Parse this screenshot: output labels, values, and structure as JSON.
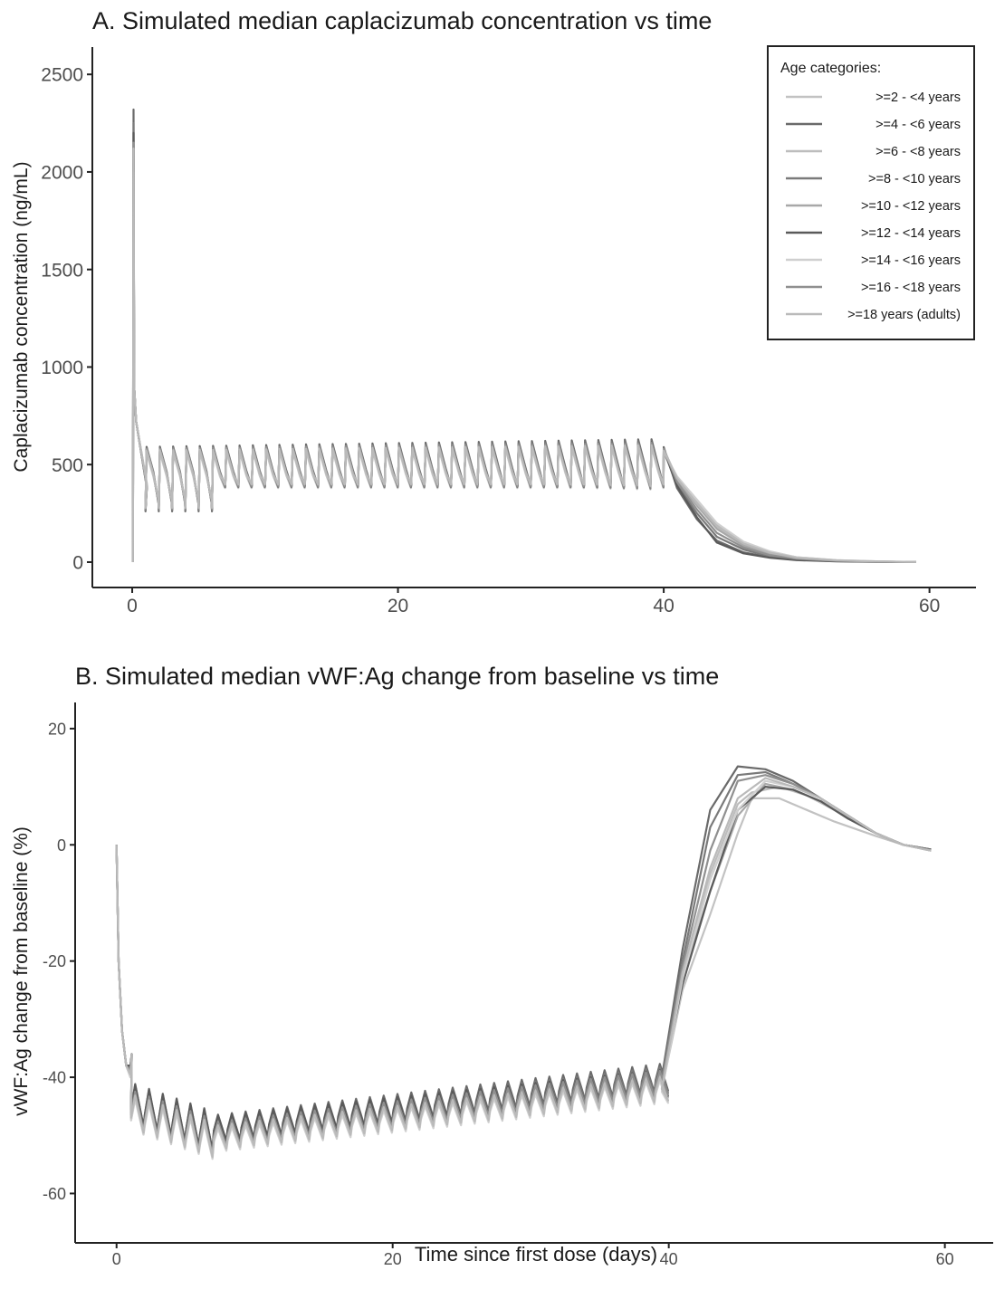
{
  "chart_data": [
    {
      "type": "line",
      "title": "A. Simulated median caplacizumab concentration vs  time",
      "xlabel": "",
      "ylabel": "Caplacizumab concentration (ng/mL)",
      "xlim": [
        -3,
        63.5
      ],
      "ylim": [
        -130,
        2640
      ],
      "x_ticks": [
        0,
        20,
        40,
        60
      ],
      "x_tick_labels": [
        "0",
        "20",
        "40",
        "60"
      ],
      "y_ticks": [
        0,
        500,
        1000,
        1500,
        2000,
        2500
      ],
      "y_tick_labels": [
        "0",
        "500",
        "1000",
        "1500",
        "2000",
        "2500"
      ],
      "grid": false,
      "legend": {
        "title": "Age categories:",
        "placement": "top-right",
        "entries": [
          ">=2 - <4 years",
          ">=4 - <6 years",
          ">=6 - <8 years",
          ">=8 - <10 years",
          ">=10 - <12 years",
          ">=12 - <14 years",
          ">=14 - <16 years",
          ">=16 - <18 years",
          ">=18 years (adults)"
        ]
      },
      "series": [
        {
          "color": "#c2c2c2",
          "peak0": 1950,
          "trough_load": 280,
          "sawtooth_min": 370,
          "sawtooth_max": 560,
          "end_max": 590,
          "washout": [
            [
              40,
              560
            ],
            [
              41,
              420
            ],
            [
              42.5,
              300
            ],
            [
              44,
              180
            ],
            [
              46,
              90
            ],
            [
              48,
              45
            ],
            [
              50,
              20
            ],
            [
              53,
              8
            ],
            [
              56,
              3
            ],
            [
              59,
              1
            ]
          ]
        },
        {
          "color": "#6a6a6a",
          "peak0": 2320,
          "trough_load": 260,
          "sawtooth_min": 380,
          "sawtooth_max": 590,
          "end_max": 630,
          "washout": [
            [
              40,
              590
            ],
            [
              41,
              380
            ],
            [
              42.5,
              220
            ],
            [
              44,
              110
            ],
            [
              46,
              50
            ],
            [
              48,
              25
            ],
            [
              50,
              12
            ],
            [
              53,
              5
            ],
            [
              56,
              2
            ],
            [
              59,
              1
            ]
          ]
        },
        {
          "color": "#bdbdbd",
          "peak0": 2050,
          "trough_load": 275,
          "sawtooth_min": 390,
          "sawtooth_max": 580,
          "end_max": 600,
          "washout": [
            [
              40,
              580
            ],
            [
              41,
              430
            ],
            [
              42.5,
              310
            ],
            [
              44,
              190
            ],
            [
              46,
              100
            ],
            [
              48,
              50
            ],
            [
              50,
              25
            ],
            [
              53,
              10
            ],
            [
              56,
              4
            ],
            [
              59,
              1
            ]
          ]
        },
        {
          "color": "#7a7a7a",
          "peak0": 2250,
          "trough_load": 265,
          "sawtooth_min": 375,
          "sawtooth_max": 580,
          "end_max": 620,
          "washout": [
            [
              40,
              580
            ],
            [
              41,
              400
            ],
            [
              42.5,
              250
            ],
            [
              44,
              130
            ],
            [
              46,
              65
            ],
            [
              48,
              30
            ],
            [
              50,
              15
            ],
            [
              53,
              6
            ],
            [
              56,
              2
            ],
            [
              59,
              1
            ]
          ]
        },
        {
          "color": "#a8a8a8",
          "peak0": 2100,
          "trough_load": 270,
          "sawtooth_min": 385,
          "sawtooth_max": 570,
          "end_max": 605,
          "washout": [
            [
              40,
              570
            ],
            [
              41,
              420
            ],
            [
              42.5,
              290
            ],
            [
              44,
              170
            ],
            [
              46,
              85
            ],
            [
              48,
              40
            ],
            [
              50,
              20
            ],
            [
              53,
              8
            ],
            [
              56,
              3
            ],
            [
              59,
              1
            ]
          ]
        },
        {
          "color": "#5a5a5a",
          "peak0": 2200,
          "trough_load": 268,
          "sawtooth_min": 380,
          "sawtooth_max": 575,
          "end_max": 615,
          "washout": [
            [
              40,
              575
            ],
            [
              41,
              390
            ],
            [
              42.5,
              230
            ],
            [
              44,
              100
            ],
            [
              46,
              45
            ],
            [
              48,
              22
            ],
            [
              50,
              10
            ],
            [
              53,
              4
            ],
            [
              56,
              2
            ],
            [
              59,
              1
            ]
          ]
        },
        {
          "color": "#cfcfcf",
          "peak0": 2000,
          "trough_load": 285,
          "sawtooth_min": 395,
          "sawtooth_max": 565,
          "end_max": 595,
          "washout": [
            [
              40,
              565
            ],
            [
              41,
              440
            ],
            [
              42.5,
              320
            ],
            [
              44,
              200
            ],
            [
              46,
              105
            ],
            [
              48,
              55
            ],
            [
              50,
              25
            ],
            [
              53,
              10
            ],
            [
              56,
              4
            ],
            [
              59,
              1
            ]
          ]
        },
        {
          "color": "#909090",
          "peak0": 2150,
          "trough_load": 270,
          "sawtooth_min": 380,
          "sawtooth_max": 580,
          "end_max": 612,
          "washout": [
            [
              40,
              580
            ],
            [
              41,
              410
            ],
            [
              42.5,
              270
            ],
            [
              44,
              150
            ],
            [
              46,
              75
            ],
            [
              48,
              35
            ],
            [
              50,
              17
            ],
            [
              53,
              7
            ],
            [
              56,
              3
            ],
            [
              59,
              1
            ]
          ]
        },
        {
          "color": "#bababa",
          "peak0": 2120,
          "trough_load": 278,
          "sawtooth_min": 388,
          "sawtooth_max": 572,
          "end_max": 600,
          "washout": [
            [
              40,
              572
            ],
            [
              41,
              430
            ],
            [
              42.5,
              300
            ],
            [
              44,
              185
            ],
            [
              46,
              95
            ],
            [
              48,
              48
            ],
            [
              50,
              22
            ],
            [
              53,
              9
            ],
            [
              56,
              3
            ],
            [
              59,
              1
            ]
          ]
        }
      ]
    },
    {
      "type": "line",
      "title": "B. Simulated median vWF:Ag change from baseline vs  time",
      "xlabel": "Time since first dose (days)",
      "ylabel": "vWF:Ag change from baseline (%)",
      "xlim": [
        -3,
        63.5
      ],
      "ylim": [
        -68.5,
        24.5
      ],
      "x_ticks": [
        0,
        20,
        40,
        60
      ],
      "x_tick_labels": [
        "0",
        "20",
        "40",
        "60"
      ],
      "y_ticks": [
        -60,
        -40,
        -20,
        0,
        20
      ],
      "y_tick_labels": [
        "-60",
        "-40",
        "-20",
        "0",
        "20"
      ],
      "grid": false,
      "series": [
        {
          "color": "#c2c2c2",
          "load_min": -46,
          "early_min": -50,
          "plateau_end": -42,
          "amp": 2.0,
          "recovery": [
            [
              39.5,
              -42
            ],
            [
              41,
              -25
            ],
            [
              43,
              -12
            ],
            [
              45,
              2
            ],
            [
              46,
              8
            ],
            [
              48,
              8
            ],
            [
              50,
              6
            ],
            [
              52,
              4
            ],
            [
              55,
              1.5
            ],
            [
              57,
              0
            ],
            [
              59,
              -1
            ]
          ]
        },
        {
          "color": "#6a6a6a",
          "load_min": -44,
          "early_min": -49,
          "plateau_end": -40,
          "amp": 2.3,
          "recovery": [
            [
              39.5,
              -40
            ],
            [
              41,
              -18
            ],
            [
              43,
              6
            ],
            [
              45,
              13.5
            ],
            [
              47,
              13
            ],
            [
              49,
              11
            ],
            [
              51,
              8
            ],
            [
              53,
              5
            ],
            [
              55,
              2
            ],
            [
              57,
              0
            ],
            [
              59,
              -0.8
            ]
          ]
        },
        {
          "color": "#bdbdbd",
          "load_min": -45,
          "early_min": -50,
          "plateau_end": -41.5,
          "amp": 2.0,
          "recovery": [
            [
              39.5,
              -41.5
            ],
            [
              41,
              -22
            ],
            [
              43,
              -5
            ],
            [
              45,
              7
            ],
            [
              46,
              9
            ],
            [
              48,
              10
            ],
            [
              50,
              8.5
            ],
            [
              52,
              6
            ],
            [
              55,
              2
            ],
            [
              57,
              0
            ],
            [
              59,
              -1
            ]
          ]
        },
        {
          "color": "#7a7a7a",
          "load_min": -44.5,
          "early_min": -49.5,
          "plateau_end": -40.5,
          "amp": 2.2,
          "recovery": [
            [
              39.5,
              -40.5
            ],
            [
              41,
              -20
            ],
            [
              43,
              3
            ],
            [
              45,
              12
            ],
            [
              47,
              12.5
            ],
            [
              49,
              10.5
            ],
            [
              51,
              8
            ],
            [
              53,
              5
            ],
            [
              55,
              2
            ],
            [
              57,
              0
            ],
            [
              59,
              -0.8
            ]
          ]
        },
        {
          "color": "#a8a8a8",
          "load_min": -45.5,
          "early_min": -50.5,
          "plateau_end": -42,
          "amp": 2.0,
          "recovery": [
            [
              39.5,
              -42
            ],
            [
              41,
              -23
            ],
            [
              43,
              -8
            ],
            [
              45,
              5
            ],
            [
              47,
              10.5
            ],
            [
              49,
              9.5
            ],
            [
              51,
              7.5
            ],
            [
              53,
              4.5
            ],
            [
              55,
              2
            ],
            [
              57,
              0
            ],
            [
              59,
              -1
            ]
          ]
        },
        {
          "color": "#5a5a5a",
          "load_min": -44,
          "early_min": -49,
          "plateau_end": -41,
          "amp": 2.2,
          "recovery": [
            [
              39.5,
              -41
            ],
            [
              41,
              -24
            ],
            [
              43,
              -8
            ],
            [
              45,
              6
            ],
            [
              47,
              10
            ],
            [
              49,
              9.5
            ],
            [
              51,
              7.5
            ],
            [
              53,
              4.5
            ],
            [
              55,
              2
            ],
            [
              57,
              0
            ],
            [
              59,
              -0.8
            ]
          ]
        },
        {
          "color": "#cfcfcf",
          "load_min": -46,
          "early_min": -51,
          "plateau_end": -42.5,
          "amp": 1.9,
          "recovery": [
            [
              39.5,
              -42.5
            ],
            [
              41,
              -23
            ],
            [
              43,
              -6
            ],
            [
              45,
              6
            ],
            [
              47,
              11
            ],
            [
              49,
              10
            ],
            [
              51,
              8
            ],
            [
              53,
              5
            ],
            [
              55,
              2
            ],
            [
              57,
              0
            ],
            [
              59,
              -1
            ]
          ]
        },
        {
          "color": "#909090",
          "load_min": -45,
          "early_min": -50,
          "plateau_end": -41,
          "amp": 2.1,
          "recovery": [
            [
              39.5,
              -41
            ],
            [
              41,
              -21
            ],
            [
              43,
              -1
            ],
            [
              45,
              11
            ],
            [
              47,
              12
            ],
            [
              49,
              10.5
            ],
            [
              51,
              8
            ],
            [
              53,
              5
            ],
            [
              55,
              2
            ],
            [
              57,
              0
            ],
            [
              59,
              -0.9
            ]
          ]
        },
        {
          "color": "#bababa",
          "load_min": -45.5,
          "early_min": -50.5,
          "plateau_end": -42,
          "amp": 2.0,
          "recovery": [
            [
              39.5,
              -42
            ],
            [
              41,
              -22
            ],
            [
              43,
              -4
            ],
            [
              45,
              8
            ],
            [
              47,
              11.5
            ],
            [
              49,
              10
            ],
            [
              51,
              8
            ],
            [
              53,
              5
            ],
            [
              55,
              2
            ],
            [
              57,
              0
            ],
            [
              59,
              -1
            ]
          ]
        }
      ]
    }
  ]
}
